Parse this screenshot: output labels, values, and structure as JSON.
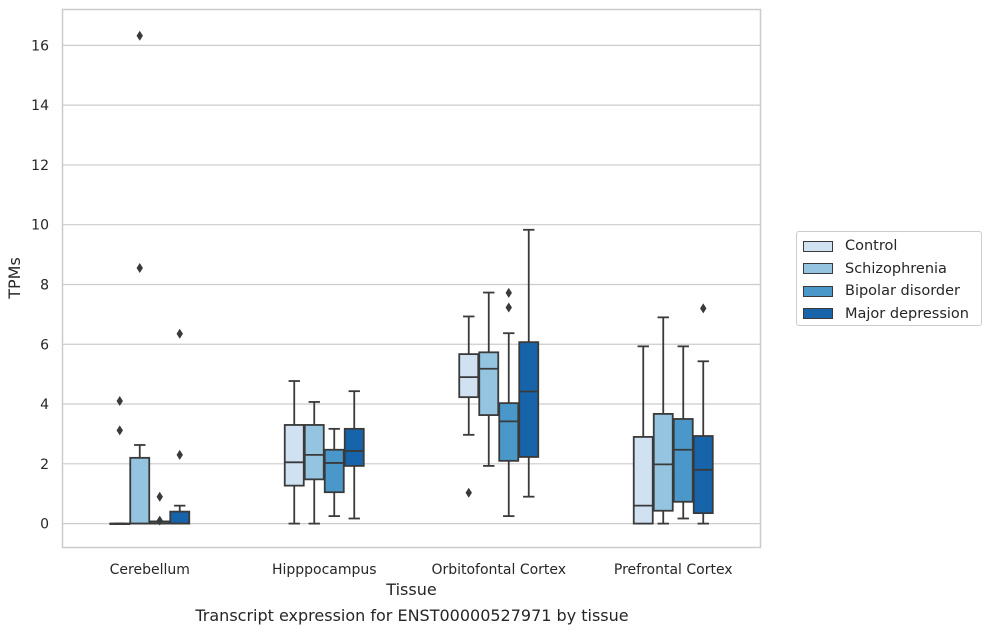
{
  "caption": "Transcript expression for ENST00000527971 by tissue",
  "chart_data": {
    "type": "box",
    "xlabel": "Tissue",
    "ylabel": "TPMs",
    "ylim": [
      -0.8,
      17.2
    ],
    "yticks": [
      0,
      2,
      4,
      6,
      8,
      10,
      12,
      14,
      16
    ],
    "grid": "horizontal",
    "legend_position": "right",
    "categories": [
      "Cerebellum",
      "Hipppocampus",
      "Orbitofontal Cortex",
      "Prefrontal Cortex"
    ],
    "series": [
      {
        "name": "Control",
        "color": "#d0e1f2",
        "boxes": [
          {
            "q1": 0,
            "median": 0,
            "q3": 0,
            "whislo": 0,
            "whishi": 0,
            "fliers": [
              4.1,
              3.12
            ]
          },
          {
            "q1": 1.27,
            "median": 2.05,
            "q3": 3.3,
            "whislo": 0,
            "whishi": 4.77,
            "fliers": []
          },
          {
            "q1": 4.23,
            "median": 4.9,
            "q3": 5.67,
            "whislo": 2.97,
            "whishi": 6.93,
            "fliers": [
              1.03
            ]
          },
          {
            "q1": 0,
            "median": 0.6,
            "q3": 2.9,
            "whislo": 0,
            "whishi": 5.93,
            "fliers": []
          }
        ]
      },
      {
        "name": "Schizophrenia",
        "color": "#94c4df",
        "boxes": [
          {
            "q1": 0,
            "median": 0,
            "q3": 2.2,
            "whislo": 0,
            "whishi": 2.63,
            "fliers": [
              16.32,
              8.55
            ]
          },
          {
            "q1": 1.48,
            "median": 2.3,
            "q3": 3.3,
            "whislo": 0,
            "whishi": 4.07,
            "fliers": []
          },
          {
            "q1": 3.63,
            "median": 5.18,
            "q3": 5.73,
            "whislo": 1.93,
            "whishi": 7.73,
            "fliers": []
          },
          {
            "q1": 0.43,
            "median": 1.98,
            "q3": 3.67,
            "whislo": 0,
            "whishi": 6.9,
            "fliers": []
          }
        ]
      },
      {
        "name": "Bipolar disorder",
        "color": "#4a98c9",
        "boxes": [
          {
            "q1": 0,
            "median": 0.07,
            "q3": 0.07,
            "whislo": 0,
            "whishi": 0.07,
            "fliers": [
              0.9,
              0.1
            ]
          },
          {
            "q1": 1.05,
            "median": 2.03,
            "q3": 2.47,
            "whislo": 0.25,
            "whishi": 3.17,
            "fliers": []
          },
          {
            "q1": 2.1,
            "median": 3.42,
            "q3": 4.03,
            "whislo": 0.25,
            "whishi": 6.37,
            "fliers": [
              7.23,
              7.72
            ]
          },
          {
            "q1": 0.73,
            "median": 2.47,
            "q3": 3.5,
            "whislo": 0.17,
            "whishi": 5.93,
            "fliers": []
          }
        ]
      },
      {
        "name": "Major depression",
        "color": "#1764ab",
        "boxes": [
          {
            "q1": 0,
            "median": 0,
            "q3": 0.4,
            "whislo": 0,
            "whishi": 0.6,
            "fliers": [
              6.35,
              2.3
            ]
          },
          {
            "q1": 1.93,
            "median": 2.43,
            "q3": 3.17,
            "whislo": 0.17,
            "whishi": 4.43,
            "fliers": []
          },
          {
            "q1": 2.23,
            "median": 4.42,
            "q3": 6.07,
            "whislo": 0.9,
            "whishi": 9.83,
            "fliers": []
          },
          {
            "q1": 0.35,
            "median": 1.8,
            "q3": 2.93,
            "whislo": 0,
            "whishi": 5.43,
            "fliers": [
              7.2
            ]
          }
        ]
      }
    ]
  }
}
